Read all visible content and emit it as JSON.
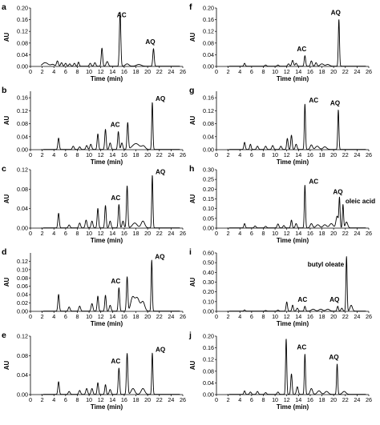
{
  "figure": {
    "x_ticks": [
      0,
      2,
      4,
      6,
      8,
      10,
      12,
      14,
      16,
      18,
      20,
      22,
      24,
      26
    ],
    "xlabel": "Time (min)",
    "ylabel": "AU"
  },
  "chart_data": [
    {
      "type": "line",
      "panel": "a",
      "xlim": [
        0,
        26
      ],
      "ylim": [
        0,
        0.2
      ],
      "y_ticks": [
        "0.00",
        "0.04",
        "0.08",
        "0.12",
        "0.16",
        "0.20"
      ],
      "peaks": [
        [
          2.5,
          0.012,
          0.5
        ],
        [
          3.8,
          0.006,
          0.3
        ],
        [
          4.6,
          0.018,
          0.15
        ],
        [
          5.3,
          0.012,
          0.15
        ],
        [
          6.0,
          0.01,
          0.15
        ],
        [
          6.7,
          0.008,
          0.15
        ],
        [
          7.5,
          0.01,
          0.15
        ],
        [
          8.2,
          0.014,
          0.12
        ],
        [
          10.2,
          0.01,
          0.15
        ],
        [
          11.0,
          0.012,
          0.15
        ],
        [
          12.2,
          0.062,
          0.12
        ],
        [
          13.1,
          0.016,
          0.18
        ],
        [
          15.3,
          0.185,
          0.12
        ],
        [
          16.5,
          0.008,
          0.3
        ],
        [
          18.5,
          0.006,
          0.4
        ],
        [
          21.0,
          0.06,
          0.12
        ]
      ],
      "annotations": [
        {
          "text": "AC",
          "x": 15.3,
          "y": 0.185
        },
        {
          "text": "AQ",
          "x": 21.0,
          "y": 0.06
        }
      ]
    },
    {
      "type": "line",
      "panel": "b",
      "xlim": [
        0,
        26
      ],
      "ylim": [
        0,
        0.18
      ],
      "y_ticks": [
        "0.00",
        "0.04",
        "0.08",
        "0.12",
        "0.16"
      ],
      "peaks": [
        [
          4.8,
          0.035,
          0.12
        ],
        [
          7.3,
          0.01,
          0.15
        ],
        [
          8.4,
          0.008,
          0.15
        ],
        [
          9.6,
          0.012,
          0.15
        ],
        [
          10.3,
          0.016,
          0.15
        ],
        [
          11.5,
          0.048,
          0.12
        ],
        [
          12.8,
          0.062,
          0.12
        ],
        [
          13.6,
          0.02,
          0.15
        ],
        [
          15.0,
          0.055,
          0.12
        ],
        [
          15.6,
          0.02,
          0.15
        ],
        [
          16.6,
          0.082,
          0.12
        ],
        [
          18.0,
          0.018,
          0.6
        ],
        [
          19.3,
          0.01,
          0.3
        ],
        [
          20.8,
          0.145,
          0.1
        ]
      ],
      "annotations": [
        {
          "text": "AC",
          "x": 15.0,
          "y": 0.055
        },
        {
          "text": "AQ",
          "x": 20.8,
          "y": 0.145
        }
      ]
    },
    {
      "type": "line",
      "panel": "c",
      "xlim": [
        0,
        26
      ],
      "ylim": [
        0,
        0.12
      ],
      "y_ticks": [
        "0.00",
        "0.04",
        "0.08",
        "0.12"
      ],
      "peaks": [
        [
          4.8,
          0.03,
          0.12
        ],
        [
          6.6,
          0.006,
          0.15
        ],
        [
          8.4,
          0.01,
          0.15
        ],
        [
          9.5,
          0.016,
          0.15
        ],
        [
          10.5,
          0.014,
          0.15
        ],
        [
          11.5,
          0.04,
          0.12
        ],
        [
          12.8,
          0.046,
          0.12
        ],
        [
          13.6,
          0.014,
          0.15
        ],
        [
          15.1,
          0.048,
          0.12
        ],
        [
          15.8,
          0.014,
          0.15
        ],
        [
          16.5,
          0.086,
          0.12
        ],
        [
          17.8,
          0.01,
          0.4
        ],
        [
          19.2,
          0.014,
          0.3
        ],
        [
          20.8,
          0.108,
          0.1
        ]
      ],
      "annotations": [
        {
          "text": "AC",
          "x": 15.1,
          "y": 0.048
        },
        {
          "text": "AQ",
          "x": 20.8,
          "y": 0.108
        }
      ]
    },
    {
      "type": "line",
      "panel": "d",
      "xlim": [
        0,
        26
      ],
      "ylim": [
        0,
        0.14
      ],
      "y_ticks": [
        "0.00",
        "0.02",
        "0.04",
        "0.06",
        "0.08",
        "0.10",
        "0.12"
      ],
      "peaks": [
        [
          4.8,
          0.04,
          0.12
        ],
        [
          6.6,
          0.01,
          0.15
        ],
        [
          8.4,
          0.012,
          0.15
        ],
        [
          10.5,
          0.018,
          0.15
        ],
        [
          11.5,
          0.036,
          0.12
        ],
        [
          12.8,
          0.038,
          0.12
        ],
        [
          13.6,
          0.014,
          0.15
        ],
        [
          15.1,
          0.056,
          0.12
        ],
        [
          16.5,
          0.082,
          0.12
        ],
        [
          17.4,
          0.03,
          0.3
        ],
        [
          18.2,
          0.032,
          0.4
        ],
        [
          19.2,
          0.022,
          0.3
        ],
        [
          20.7,
          0.122,
          0.1
        ]
      ],
      "annotations": [
        {
          "text": "AC",
          "x": 15.1,
          "y": 0.056
        },
        {
          "text": "AQ",
          "x": 20.7,
          "y": 0.122
        }
      ]
    },
    {
      "type": "line",
      "panel": "e",
      "xlim": [
        0,
        26
      ],
      "ylim": [
        0,
        0.12
      ],
      "y_ticks": [
        "0.00",
        "0.04",
        "0.08",
        "0.12"
      ],
      "peaks": [
        [
          4.8,
          0.026,
          0.12
        ],
        [
          6.6,
          0.006,
          0.15
        ],
        [
          8.4,
          0.008,
          0.15
        ],
        [
          9.6,
          0.012,
          0.15
        ],
        [
          10.5,
          0.012,
          0.15
        ],
        [
          11.5,
          0.024,
          0.12
        ],
        [
          12.8,
          0.02,
          0.12
        ],
        [
          13.6,
          0.01,
          0.15
        ],
        [
          15.1,
          0.054,
          0.12
        ],
        [
          16.5,
          0.084,
          0.12
        ],
        [
          17.5,
          0.012,
          0.3
        ],
        [
          19.2,
          0.012,
          0.3
        ],
        [
          20.8,
          0.085,
          0.1
        ]
      ],
      "annotations": [
        {
          "text": "AC",
          "x": 15.1,
          "y": 0.054
        },
        {
          "text": "AQ",
          "x": 20.8,
          "y": 0.085
        }
      ]
    },
    {
      "type": "line",
      "panel": "f",
      "xlim": [
        0,
        26
      ],
      "ylim": [
        0,
        0.2
      ],
      "y_ticks": [
        "0.00",
        "0.04",
        "0.08",
        "0.12",
        "0.16",
        "0.20"
      ],
      "peaks": [
        [
          4.8,
          0.01,
          0.12
        ],
        [
          8.4,
          0.004,
          0.15
        ],
        [
          10.5,
          0.004,
          0.15
        ],
        [
          12.3,
          0.008,
          0.15
        ],
        [
          13.0,
          0.02,
          0.15
        ],
        [
          13.6,
          0.01,
          0.15
        ],
        [
          15.1,
          0.036,
          0.12
        ],
        [
          16.2,
          0.018,
          0.15
        ],
        [
          17.0,
          0.012,
          0.15
        ],
        [
          18.0,
          0.008,
          0.3
        ],
        [
          19.0,
          0.006,
          0.3
        ],
        [
          20.9,
          0.16,
          0.1
        ]
      ],
      "annotations": [
        {
          "text": "AC",
          "x": 15.1,
          "y": 0.036
        },
        {
          "text": "AQ",
          "x": 20.9,
          "y": 0.16
        }
      ]
    },
    {
      "type": "line",
      "panel": "g",
      "xlim": [
        0,
        26
      ],
      "ylim": [
        0,
        0.18
      ],
      "y_ticks": [
        "0.00",
        "0.04",
        "0.08",
        "0.12",
        "0.16"
      ],
      "peaks": [
        [
          4.8,
          0.022,
          0.12
        ],
        [
          5.8,
          0.016,
          0.12
        ],
        [
          7.0,
          0.01,
          0.15
        ],
        [
          8.4,
          0.01,
          0.15
        ],
        [
          9.6,
          0.012,
          0.15
        ],
        [
          11.0,
          0.01,
          0.15
        ],
        [
          12.1,
          0.034,
          0.12
        ],
        [
          12.8,
          0.044,
          0.12
        ],
        [
          13.6,
          0.016,
          0.15
        ],
        [
          15.1,
          0.14,
          0.1
        ],
        [
          16.2,
          0.014,
          0.2
        ],
        [
          17.2,
          0.01,
          0.3
        ],
        [
          18.5,
          0.008,
          0.3
        ],
        [
          20.8,
          0.122,
          0.1
        ]
      ],
      "annotations": [
        {
          "text": "AC",
          "x": 15.1,
          "y": 0.14
        },
        {
          "text": "AQ",
          "x": 20.8,
          "y": 0.122
        }
      ]
    },
    {
      "type": "line",
      "panel": "h",
      "xlim": [
        0,
        26
      ],
      "ylim": [
        0,
        0.3
      ],
      "y_ticks": [
        "0.00",
        "0.05",
        "0.10",
        "0.15",
        "0.20",
        "0.25",
        "0.30"
      ],
      "peaks": [
        [
          4.8,
          0.022,
          0.12
        ],
        [
          6.6,
          0.01,
          0.15
        ],
        [
          8.4,
          0.008,
          0.15
        ],
        [
          10.5,
          0.02,
          0.15
        ],
        [
          11.5,
          0.012,
          0.15
        ],
        [
          12.8,
          0.04,
          0.12
        ],
        [
          13.6,
          0.022,
          0.15
        ],
        [
          15.1,
          0.22,
          0.1
        ],
        [
          16.2,
          0.022,
          0.2
        ],
        [
          17.3,
          0.016,
          0.3
        ],
        [
          18.5,
          0.016,
          0.3
        ],
        [
          19.6,
          0.022,
          0.3
        ],
        [
          20.6,
          0.06,
          0.2
        ],
        [
          21.0,
          0.15,
          0.1
        ],
        [
          21.6,
          0.12,
          0.1
        ],
        [
          22.2,
          0.03,
          0.2
        ]
      ],
      "annotations": [
        {
          "text": "AC",
          "x": 15.1,
          "y": 0.22
        },
        {
          "text": "AQ",
          "x": 21.0,
          "y": 0.15
        },
        {
          "text": "oleic acid",
          "x": 21.6,
          "y": 0.12
        }
      ]
    },
    {
      "type": "line",
      "panel": "i",
      "xlim": [
        0,
        26
      ],
      "ylim": [
        0,
        0.6
      ],
      "y_ticks": [
        "0.00",
        "0.10",
        "0.20",
        "0.30",
        "0.40",
        "0.50",
        "0.60"
      ],
      "peaks": [
        [
          4.8,
          0.012,
          0.12
        ],
        [
          8.4,
          0.006,
          0.15
        ],
        [
          10.5,
          0.01,
          0.15
        ],
        [
          12.0,
          0.094,
          0.12
        ],
        [
          13.0,
          0.062,
          0.12
        ],
        [
          13.8,
          0.03,
          0.15
        ],
        [
          15.1,
          0.05,
          0.12
        ],
        [
          16.5,
          0.02,
          0.3
        ],
        [
          17.8,
          0.02,
          0.3
        ],
        [
          19.0,
          0.02,
          0.3
        ],
        [
          20.7,
          0.05,
          0.12
        ],
        [
          21.4,
          0.03,
          0.15
        ],
        [
          22.2,
          0.56,
          0.1
        ],
        [
          23.0,
          0.06,
          0.2
        ]
      ],
      "annotations": [
        {
          "text": "AC",
          "x": 15.1,
          "y": 0.05
        },
        {
          "text": "AQ",
          "x": 20.7,
          "y": 0.05
        },
        {
          "text": "butyl oleate",
          "x": 22.2,
          "y": 0.56
        }
      ]
    },
    {
      "type": "line",
      "panel": "j",
      "xlim": [
        0,
        26
      ],
      "ylim": [
        0,
        0.2
      ],
      "y_ticks": [
        "0.00",
        "0.04",
        "0.08",
        "0.12",
        "0.16",
        "0.20"
      ],
      "peaks": [
        [
          4.8,
          0.012,
          0.12
        ],
        [
          5.8,
          0.008,
          0.15
        ],
        [
          7.0,
          0.01,
          0.15
        ],
        [
          8.4,
          0.006,
          0.15
        ],
        [
          10.5,
          0.008,
          0.15
        ],
        [
          11.9,
          0.19,
          0.1
        ],
        [
          12.8,
          0.07,
          0.12
        ],
        [
          13.8,
          0.026,
          0.15
        ],
        [
          15.1,
          0.138,
          0.1
        ],
        [
          16.2,
          0.02,
          0.2
        ],
        [
          17.5,
          0.012,
          0.3
        ],
        [
          18.8,
          0.01,
          0.3
        ],
        [
          20.6,
          0.104,
          0.1
        ],
        [
          21.8,
          0.01,
          0.3
        ]
      ],
      "annotations": [
        {
          "text": "AC",
          "x": 15.1,
          "y": 0.138
        },
        {
          "text": "AQ",
          "x": 20.6,
          "y": 0.104
        }
      ]
    }
  ]
}
